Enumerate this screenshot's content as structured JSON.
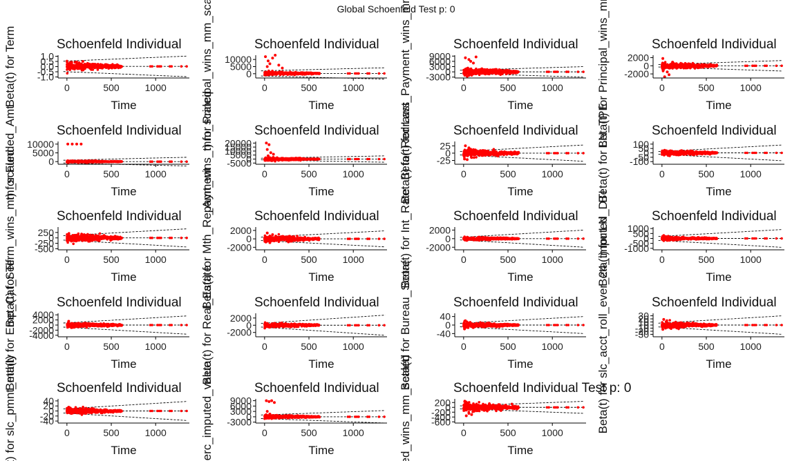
{
  "figure": {
    "title": "Global Schoenfeld Test p: 0"
  },
  "chart_data": [
    {
      "type": "scatter",
      "title": "Schoenfeld Individual",
      "xlabel": "Time",
      "ylabel": "Beta(t) for Term",
      "xlim": [
        -100,
        1380
      ],
      "ylim": [
        -1.1,
        1.1
      ],
      "yticks": [
        "1.0",
        "0.5",
        "0.0",
        "-0.5",
        "-1.0"
      ],
      "ytick_values": [
        1,
        0.5,
        0,
        -0.5,
        -1
      ],
      "xticks": [
        "0",
        "500",
        "1000"
      ],
      "xtick_values": [
        0,
        500,
        1000
      ],
      "band": 0.5,
      "band_end": 1.0,
      "center": 0.02,
      "spread": 0.12,
      "outliers": [
        [
          180,
          0.5
        ]
      ],
      "grid": false
    },
    {
      "type": "scatter",
      "title": "Schoenfeld Individual",
      "xlabel": "Time",
      "ylabel": "t) for Principal_wins_mm_scaled",
      "xlim": [
        -100,
        1380
      ],
      "ylim": [
        -3000,
        13000
      ],
      "yticks": [
        "10000",
        "5000",
        "0"
      ],
      "ytick_values": [
        10000,
        5000,
        0
      ],
      "xticks": [
        "0",
        "500",
        "1000"
      ],
      "xtick_values": [
        0,
        500,
        1000
      ],
      "band": 1800,
      "band_end": 4000,
      "center": 200,
      "spread": 400,
      "outliers": [
        [
          10,
          12000
        ],
        [
          40,
          9000
        ],
        [
          60,
          7000
        ],
        [
          90,
          11000
        ],
        [
          160,
          6000
        ],
        [
          120,
          13000
        ],
        [
          30,
          5000
        ],
        [
          200,
          4000
        ]
      ],
      "grid": false
    },
    {
      "type": "scatter",
      "title": "Schoenfeld Individual",
      "xlabel": "Time",
      "ylabel": "Beta(t) for Last_Payment_wins_mm_scaled",
      "xlim": [
        -100,
        1380
      ],
      "ylim": [
        -3500,
        9500
      ],
      "yticks": [
        "9000",
        "6000",
        "3000",
        "0",
        "-3000"
      ],
      "ytick_values": [
        9000,
        6000,
        3000,
        0,
        -3000
      ],
      "xticks": [
        "0",
        "500",
        "1000"
      ],
      "xtick_values": [
        0,
        500,
        1000
      ],
      "band": 900,
      "band_end": 3000,
      "center": 0,
      "spread": 700,
      "outliers": [
        [
          20,
          8000
        ],
        [
          60,
          7000
        ],
        [
          140,
          8500
        ],
        [
          110,
          5000
        ],
        [
          40,
          -2500
        ],
        [
          80,
          6000
        ]
      ],
      "grid": false
    },
    {
      "type": "scatter",
      "title": "Schoenfeld Individual",
      "xlabel": "Time",
      "ylabel": "Beta(t) for Principal_wins_mm_",
      "xlim": [
        -100,
        1380
      ],
      "ylim": [
        -3000,
        2600
      ],
      "yticks": [
        "2000",
        "0",
        "-2000"
      ],
      "ytick_values": [
        2000,
        0,
        -2000
      ],
      "xticks": [
        "0",
        "500",
        "1000"
      ],
      "xtick_values": [
        0,
        500,
        1000
      ],
      "band": 300,
      "band_end": 1300,
      "center": 0,
      "spread": 250,
      "outliers": [
        [
          30,
          -2700
        ],
        [
          80,
          -2200
        ],
        [
          10,
          1800
        ],
        [
          60,
          -1500
        ],
        [
          120,
          900
        ]
      ],
      "grid": false
    },
    {
      "type": "scatter",
      "title": "Schoenfeld Individual",
      "xlabel": "Time",
      "ylabel": "t) for Funded_Amt",
      "xlim": [
        -100,
        1380
      ],
      "ylim": [
        -1500,
        11500
      ],
      "yticks": [
        "10000",
        "5000",
        "0"
      ],
      "ytick_values": [
        10000,
        5000,
        0
      ],
      "xticks": [
        "0",
        "500",
        "1000"
      ],
      "xtick_values": [
        0,
        500,
        1000
      ],
      "band": 800,
      "band_end": 2500,
      "center": 0,
      "spread": 200,
      "outliers": [
        [
          10,
          10000
        ],
        [
          60,
          10000
        ],
        [
          110,
          10000
        ],
        [
          160,
          10000
        ]
      ],
      "grid": false
    },
    {
      "type": "scatter",
      "title": "Schoenfeld Individual",
      "xlabel": "Time",
      "ylabel": "_Amt_wins_mm_scaled",
      "xlim": [
        -100,
        1380
      ],
      "ylim": [
        -6500,
        22000
      ],
      "yticks": [
        "20000",
        "15000",
        "10000",
        "5000",
        "0",
        "-5000"
      ],
      "ytick_values": [
        20000,
        15000,
        10000,
        5000,
        0,
        -5000
      ],
      "xticks": [
        "0",
        "500",
        "1000"
      ],
      "xtick_values": [
        0,
        500,
        1000
      ],
      "band": 1000,
      "band_end": 4000,
      "center": 0,
      "spread": 600,
      "outliers": [
        [
          20,
          20000
        ],
        [
          50,
          18000
        ],
        [
          30,
          12000
        ],
        [
          70,
          8000
        ],
        [
          100,
          6000
        ],
        [
          40,
          4000
        ]
      ],
      "grid": false
    },
    {
      "type": "scatter",
      "title": "Schoenfeld Individual",
      "xlabel": "Time",
      "ylabel": "Beta(t) for Redraws",
      "xlim": [
        -100,
        1380
      ],
      "ylim": [
        -38,
        40
      ],
      "yticks": [
        "25",
        "0",
        "-25"
      ],
      "ytick_values": [
        25,
        0,
        -25
      ],
      "xticks": [
        "0",
        "500",
        "1000"
      ],
      "xtick_values": [
        0,
        500,
        1000
      ],
      "band": 6,
      "band_end": 28,
      "center": 0,
      "spread": 4,
      "outliers": [
        [
          20,
          25
        ],
        [
          40,
          -22
        ],
        [
          60,
          18
        ],
        [
          90,
          -15
        ],
        [
          10,
          -20
        ]
      ],
      "grid": false
    },
    {
      "type": "scatter",
      "title": "Schoenfeld Individual",
      "xlabel": "Time",
      "ylabel": "Beta(t) for LN_TPE",
      "xlim": [
        -100,
        1380
      ],
      "ylim": [
        -130,
        130
      ],
      "yticks": [
        "100",
        "50",
        "0",
        "-50",
        "-100"
      ],
      "ytick_values": [
        100,
        50,
        0,
        -50,
        -100
      ],
      "xticks": [
        "0",
        "500",
        "1000"
      ],
      "xtick_values": [
        0,
        500,
        1000
      ],
      "band": 15,
      "band_end": 90,
      "center": 0,
      "spread": 10,
      "outliers": [
        [
          30,
          30
        ],
        [
          70,
          -30
        ]
      ],
      "grid": false
    },
    {
      "type": "scatter",
      "title": "Schoenfeld Individual",
      "xlabel": "Time",
      "ylabel": "Beta(t) for Term_wins_mm_scaled",
      "xlim": [
        -100,
        1380
      ],
      "ylim": [
        -550,
        500
      ],
      "yticks": [
        "250",
        "0",
        "-250",
        "-500"
      ],
      "ytick_values": [
        250,
        0,
        -250,
        -500
      ],
      "xticks": [
        "0",
        "500",
        "1000"
      ],
      "xtick_values": [
        0,
        500,
        1000
      ],
      "band": 100,
      "band_end": 420,
      "center": 0,
      "spread": 60,
      "outliers": [
        [
          20,
          180
        ],
        [
          50,
          -150
        ],
        [
          90,
          120
        ]
      ],
      "grid": false
    },
    {
      "type": "scatter",
      "title": "Schoenfeld Individual",
      "xlabel": "Time",
      "ylabel": "Beta(t) for Mth_Repayment",
      "xlim": [
        -100,
        1380
      ],
      "ylim": [
        -2600,
        2800
      ],
      "yticks": [
        "2000",
        "0",
        "-2000"
      ],
      "ytick_values": [
        2000,
        0,
        -2000
      ],
      "xticks": [
        "0",
        "500",
        "1000"
      ],
      "xtick_values": [
        0,
        500,
        1000
      ],
      "band": 400,
      "band_end": 1900,
      "center": 0,
      "spread": 250,
      "outliers": [
        [
          30,
          1400
        ],
        [
          60,
          -900
        ],
        [
          90,
          1000
        ]
      ],
      "grid": false
    },
    {
      "type": "scatter",
      "title": "Schoenfeld Individual",
      "xlabel": "Time",
      "ylabel": "Beta(t) for Int_Rate",
      "xlim": [
        -100,
        1380
      ],
      "ylim": [
        -2600,
        2700
      ],
      "yticks": [
        "2000",
        "0",
        "-2000"
      ],
      "ytick_values": [
        2000,
        0,
        -2000
      ],
      "xticks": [
        "0",
        "500",
        "1000"
      ],
      "xtick_values": [
        0,
        500,
        1000
      ],
      "band": 300,
      "band_end": 2000,
      "center": 0,
      "spread": 120,
      "outliers": [],
      "grid": false
    },
    {
      "type": "scatter",
      "title": "Schoenfeld Individual",
      "xlabel": "Time",
      "ylabel": "Beta(t) for LN_DTI",
      "xlim": [
        -100,
        1380
      ],
      "ylim": [
        -1150,
        1150
      ],
      "yticks": [
        "1000",
        "500",
        "0",
        "-500",
        "-1000"
      ],
      "ytick_values": [
        1000,
        500,
        0,
        -500,
        -1000
      ],
      "xticks": [
        "0",
        "500",
        "1000"
      ],
      "xtick_values": [
        0,
        500,
        1000
      ],
      "band": 200,
      "band_end": 900,
      "center": 0,
      "spread": 60,
      "outliers": [
        [
          20,
          300
        ],
        [
          60,
          -200
        ]
      ],
      "grid": false
    },
    {
      "type": "scatter",
      "title": "Schoenfeld Individual",
      "xlabel": "Time",
      "ylabel": "Beta(t) for Emp_Cat_Self",
      "xlim": [
        -100,
        1380
      ],
      "ylim": [
        -4600,
        4600
      ],
      "yticks": [
        "4000",
        "2000",
        "0",
        "-2000",
        "-4000"
      ],
      "ytick_values": [
        4000,
        2000,
        0,
        -2000,
        -4000
      ],
      "xticks": [
        "0",
        "500",
        "1000"
      ],
      "xtick_values": [
        0,
        500,
        1000
      ],
      "band": 800,
      "band_end": 3600,
      "center": 0,
      "spread": 300,
      "outliers": [
        [
          20,
          1500
        ],
        [
          50,
          -1000
        ]
      ],
      "grid": false
    },
    {
      "type": "scatter",
      "title": "Schoenfeld Individual",
      "xlabel": "Time",
      "ylabel": "Beta(t) for Real_Estate",
      "xlim": [
        -100,
        1380
      ],
      "ylim": [
        -3200,
        3300
      ],
      "yticks": [
        "2000",
        "0",
        "-2000"
      ],
      "ytick_values": [
        2000,
        0,
        -2000
      ],
      "xticks": [
        "0",
        "500",
        "1000"
      ],
      "xtick_values": [
        0,
        500,
        1000
      ],
      "band": 500,
      "band_end": 2800,
      "center": 0,
      "spread": 200,
      "outliers": [],
      "grid": false
    },
    {
      "type": "scatter",
      "title": "Schoenfeld Individual",
      "xlabel": "Time",
      "ylabel": "Beta(t) for Bureau_Score",
      "xlim": [
        -100,
        1380
      ],
      "ylim": [
        -55,
        55
      ],
      "yticks": [
        "40",
        "0",
        "-40"
      ],
      "ytick_values": [
        40,
        0,
        -40
      ],
      "xticks": [
        "0",
        "500",
        "1000"
      ],
      "xtick_values": [
        0,
        500,
        1000
      ],
      "band": 8,
      "band_end": 40,
      "center": 0,
      "spread": 4,
      "outliers": [
        [
          20,
          20
        ],
        [
          50,
          -12
        ],
        [
          10,
          -18
        ]
      ],
      "grid": false
    },
    {
      "type": "scatter",
      "title": "Schoenfeld Individual",
      "xlabel": "Time",
      "ylabel": "Beta(t) for slc_acct_roll_ever_24_imputed",
      "xlim": [
        -100,
        1380
      ],
      "ylim": [
        -38,
        38
      ],
      "yticks": [
        "30",
        "20",
        "10",
        "0",
        "-10",
        "-20",
        "-30"
      ],
      "ytick_values": [
        30,
        20,
        10,
        0,
        -10,
        -20,
        -30
      ],
      "xticks": [
        "0",
        "500",
        "1000"
      ],
      "xtick_values": [
        0,
        500,
        1000
      ],
      "band": 6,
      "band_end": 30,
      "center": 0,
      "spread": 3,
      "outliers": [
        [
          20,
          18
        ],
        [
          40,
          -10
        ],
        [
          10,
          -14
        ]
      ],
      "grid": false
    },
    {
      "type": "scatter",
      "title": "Schoenfeld Individual",
      "xlabel": "Time",
      "ylabel": "(t) for slc_pmnt_mthly",
      "xlim": [
        -100,
        1380
      ],
      "ylim": [
        -48,
        48
      ],
      "yticks": [
        "40",
        "20",
        "0",
        "-20",
        "-40"
      ],
      "ytick_values": [
        40,
        20,
        0,
        -20,
        -40
      ],
      "xticks": [
        "0",
        "500",
        "1000"
      ],
      "xtick_values": [
        0,
        500,
        1000
      ],
      "band": 8,
      "band_end": 38,
      "center": 0,
      "spread": 4,
      "outliers": [
        [
          20,
          15
        ],
        [
          50,
          -10
        ]
      ],
      "grid": false
    },
    {
      "type": "scatter",
      "title": "Schoenfeld Individual",
      "xlabel": "Time",
      "ylabel": "erc_imputed_value",
      "xlim": [
        -100,
        1380
      ],
      "ylim": [
        -3500,
        10000
      ],
      "yticks": [
        "9000",
        "6000",
        "3000",
        "0",
        "-3000"
      ],
      "ytick_values": [
        9000,
        6000,
        3000,
        0,
        -3000
      ],
      "xticks": [
        "0",
        "500",
        "1000"
      ],
      "xtick_values": [
        0,
        500,
        1000
      ],
      "band": 1000,
      "band_end": 3500,
      "center": 0,
      "spread": 300,
      "outliers": [
        [
          20,
          9000
        ],
        [
          50,
          8500
        ],
        [
          80,
          9000
        ],
        [
          110,
          8000
        ],
        [
          30,
          3000
        ],
        [
          60,
          1500
        ]
      ],
      "grid": false
    },
    {
      "type": "scatter",
      "title": "Schoenfeld Individual Test p: 0",
      "xlabel": "Time",
      "ylabel": "ted_wins_mm_scaled",
      "xlim": [
        -100,
        1380
      ],
      "ylim": [
        -650,
        350
      ],
      "yticks": [
        "200",
        "0",
        "-200",
        "-400",
        "-600"
      ],
      "ytick_values": [
        200,
        0,
        -200,
        -400,
        -600
      ],
      "xticks": [
        "0",
        "500",
        "1000"
      ],
      "xtick_values": [
        0,
        500,
        1000
      ],
      "band": 60,
      "band_end": 250,
      "center": 0,
      "spread": 60,
      "outliers": [
        [
          30,
          -350
        ],
        [
          60,
          -250
        ],
        [
          90,
          -300
        ],
        [
          20,
          150
        ],
        [
          120,
          -120
        ]
      ],
      "grid": false
    }
  ],
  "colors": {
    "points": "#ff0000",
    "band": "#000000",
    "axis": "#000000",
    "background": "#ffffff"
  }
}
